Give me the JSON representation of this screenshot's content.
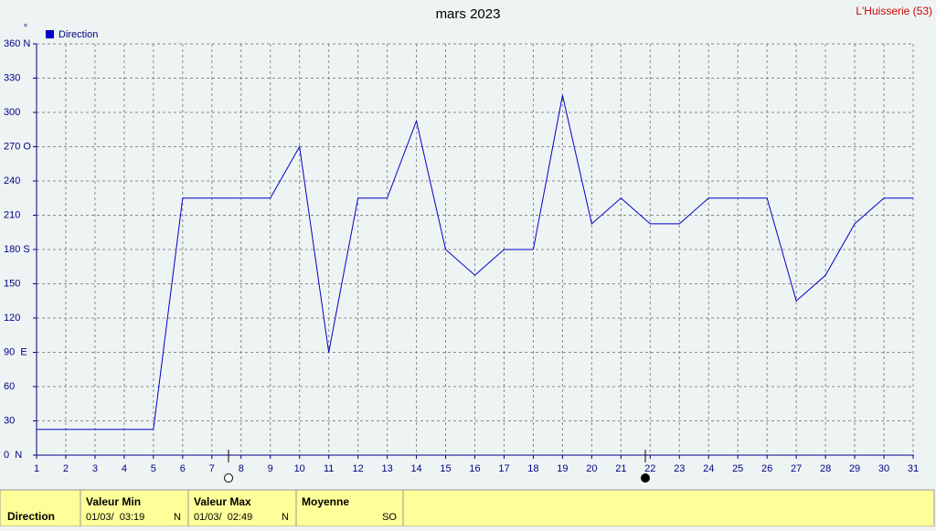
{
  "chart_data": {
    "type": "line",
    "title": "mars 2023",
    "subtitle": "L'Huisserie (53)",
    "y_unit": "°",
    "x": [
      1,
      2,
      3,
      4,
      5,
      6,
      7,
      8,
      9,
      10,
      11,
      12,
      13,
      14,
      15,
      16,
      17,
      18,
      19,
      20,
      21,
      22,
      23,
      24,
      25,
      26,
      27,
      28,
      29,
      30,
      31
    ],
    "series": [
      {
        "name": "Direction",
        "color": "#0000c8",
        "values": [
          22.5,
          22.5,
          22.5,
          22.5,
          22.5,
          225,
          225,
          225,
          225,
          270,
          90,
          225,
          225,
          292.5,
          180,
          157.5,
          180,
          180,
          315,
          202.5,
          225,
          202.5,
          202.5,
          225,
          225,
          225,
          135,
          157.5,
          202.5,
          225,
          225
        ]
      }
    ],
    "xlim": [
      1,
      31
    ],
    "xticks": [
      1,
      2,
      3,
      4,
      5,
      6,
      7,
      8,
      9,
      10,
      11,
      12,
      13,
      14,
      15,
      16,
      17,
      18,
      19,
      20,
      21,
      22,
      23,
      24,
      25,
      26,
      27,
      28,
      29,
      30,
      31
    ],
    "ylim": [
      0,
      360
    ],
    "yticks": [
      {
        "value": 0,
        "label": "0  N"
      },
      30,
      60,
      {
        "value": 90,
        "label": "90  E"
      },
      120,
      150,
      {
        "value": 180,
        "label": "180 S"
      },
      210,
      240,
      {
        "value": 270,
        "label": "270 O"
      },
      300,
      330,
      {
        "value": 360,
        "label": "360 N"
      }
    ],
    "grid": true,
    "legend": "top-left"
  },
  "summary": {
    "row_label": "Direction",
    "columns": [
      {
        "title": "Valeur Min",
        "date": "01/03/  03:19",
        "value": "N"
      },
      {
        "title": "Valeur Max",
        "date": "01/03/  02:49",
        "value": "N"
      },
      {
        "title": "Moyenne",
        "value": "SO"
      }
    ]
  }
}
